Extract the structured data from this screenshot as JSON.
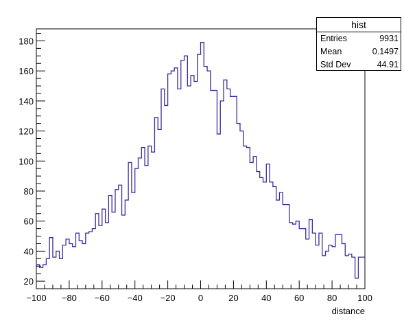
{
  "chart_data": {
    "type": "histogram",
    "title": "",
    "xlabel": "distance",
    "ylabel": "",
    "xlim": [
      -100,
      100
    ],
    "ylim": [
      15,
      188
    ],
    "bin_width": 2,
    "bin_start": -100,
    "x_ticks": [
      -100,
      -80,
      -60,
      -40,
      -20,
      0,
      20,
      40,
      60,
      80,
      100
    ],
    "y_ticks": [
      20,
      40,
      60,
      80,
      100,
      120,
      140,
      160,
      180
    ],
    "series": [
      {
        "color": "#3d2b9c",
        "values": [
          31,
          29,
          31,
          35,
          49,
          36,
          40,
          35,
          44,
          48,
          45,
          43,
          52,
          47,
          45,
          52,
          53,
          55,
          65,
          57,
          68,
          59,
          77,
          66,
          81,
          84,
          64,
          74,
          99,
          79,
          95,
          102,
          109,
          97,
          110,
          106,
          129,
          121,
          148,
          137,
          158,
          160,
          162,
          148,
          167,
          170,
          150,
          157,
          153,
          171,
          179,
          163,
          160,
          147,
          147,
          118,
          140,
          154,
          148,
          143,
          143,
          125,
          120,
          110,
          109,
          99,
          103,
          93,
          89,
          86,
          98,
          86,
          83,
          74,
          79,
          71,
          71,
          59,
          58,
          60,
          55,
          55,
          48,
          61,
          52,
          44,
          52,
          37,
          40,
          44,
          43,
          51,
          51,
          45,
          37,
          38,
          36,
          22,
          36,
          36
        ]
      }
    ]
  },
  "stats": {
    "title": "hist",
    "rows": [
      {
        "label": "Entries",
        "value": "9931"
      },
      {
        "label": "Mean",
        "value": "0.1497"
      },
      {
        "label": "Std Dev",
        "value": "44.91"
      }
    ]
  }
}
